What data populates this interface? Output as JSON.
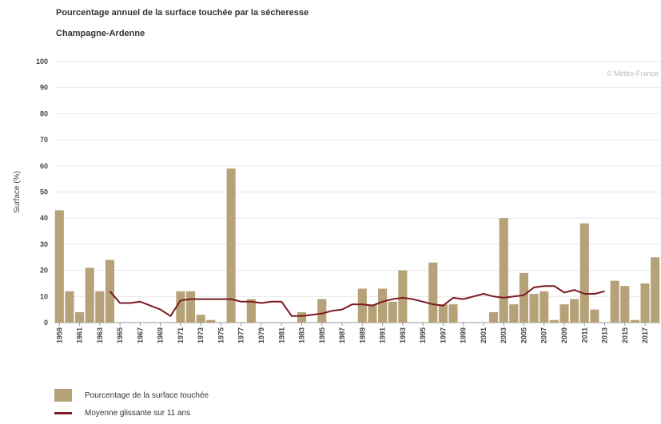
{
  "chart_data": {
    "type": "bar",
    "title": "Pourcentage annuel de la surface touchée par la sécheresse",
    "subtitle": "Champagne-Ardenne",
    "ylabel": "Surface (%)",
    "xlabel": "",
    "ylim": [
      0,
      100
    ],
    "yticks": [
      "0",
      "10",
      "20",
      "30",
      "40",
      "50",
      "60",
      "70",
      "80",
      "90",
      "100"
    ],
    "xticks": [
      "1959",
      "1961",
      "1963",
      "1965",
      "1967",
      "1969",
      "1971",
      "1973",
      "1975",
      "1977",
      "1979",
      "1981",
      "1983",
      "1985",
      "1987",
      "1989",
      "1991",
      "1993",
      "1995",
      "1997",
      "1999",
      "2001",
      "2003",
      "2005",
      "2007",
      "2009",
      "2011",
      "2013",
      "2015",
      "2017"
    ],
    "credit": "© Météo-France",
    "grid": true,
    "legend_position": "bottom-left",
    "years": [
      1959,
      1960,
      1961,
      1962,
      1963,
      1964,
      1965,
      1966,
      1967,
      1968,
      1969,
      1970,
      1971,
      1972,
      1973,
      1974,
      1975,
      1976,
      1977,
      1978,
      1979,
      1980,
      1981,
      1982,
      1983,
      1984,
      1985,
      1986,
      1987,
      1988,
      1989,
      1990,
      1991,
      1992,
      1993,
      1994,
      1995,
      1996,
      1997,
      1998,
      1999,
      2000,
      2001,
      2002,
      2003,
      2004,
      2005,
      2006,
      2007,
      2008,
      2009,
      2010,
      2011,
      2012,
      2013,
      2014,
      2015,
      2016,
      2017,
      2018
    ],
    "series": [
      {
        "name": "Pourcentage de la surface touchée",
        "kind": "bar",
        "color": "#b5a278",
        "values": [
          43,
          12,
          4,
          21,
          12,
          24,
          0,
          0,
          0,
          0,
          0,
          0,
          12,
          12,
          3,
          1,
          0,
          59,
          0,
          9,
          0,
          0,
          0,
          0,
          4,
          0,
          9,
          0,
          0,
          0,
          13,
          7,
          13,
          8,
          20,
          0,
          0,
          23,
          7,
          7,
          0,
          0,
          0,
          4,
          40,
          7,
          19,
          11,
          12,
          1,
          7,
          9,
          38,
          5,
          0,
          16,
          14,
          1,
          15,
          25
        ]
      },
      {
        "name": "Moyenne glissante sur 11 ans",
        "kind": "line",
        "color": "#7a1a23",
        "values": [
          null,
          null,
          null,
          null,
          null,
          12,
          7.5,
          7.5,
          8,
          6.5,
          5,
          2.5,
          8.5,
          9,
          9,
          9,
          9,
          9,
          8,
          8,
          7.5,
          8,
          8,
          2.5,
          2.5,
          3,
          3.5,
          4.5,
          5,
          7,
          7,
          6.5,
          8,
          9,
          9.5,
          9,
          8,
          7,
          6.5,
          9.5,
          9,
          10,
          11,
          10,
          9.5,
          10,
          10.5,
          13.5,
          14,
          14,
          11.5,
          12.5,
          11,
          11,
          12,
          null,
          null,
          null,
          null,
          null
        ]
      }
    ]
  }
}
